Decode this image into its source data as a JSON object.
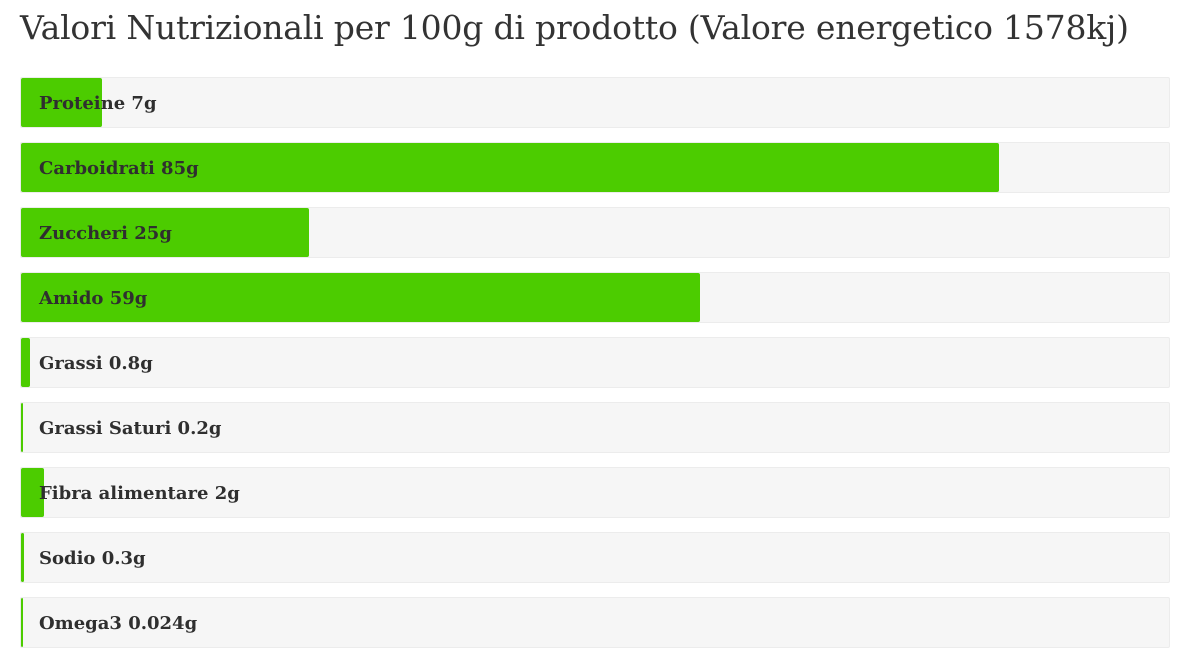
{
  "colors": {
    "bar": "#4ccc00",
    "track": "#f6f6f6",
    "text": "#333333"
  },
  "chart_data": {
    "type": "bar",
    "orientation": "horizontal",
    "title": "Valori Nutrizionali per 100g di prodotto (Valore energetico 1578kj)",
    "xlim": [
      0,
      100
    ],
    "bars": [
      {
        "label": "Proteine 7g",
        "name": "Proteine",
        "value": 7,
        "unit": "g"
      },
      {
        "label": "Carboidrati 85g",
        "name": "Carboidrati",
        "value": 85,
        "unit": "g"
      },
      {
        "label": "Zuccheri 25g",
        "name": "Zuccheri",
        "value": 25,
        "unit": "g"
      },
      {
        "label": "Amido 59g",
        "name": "Amido",
        "value": 59,
        "unit": "g"
      },
      {
        "label": "Grassi 0.8g",
        "name": "Grassi",
        "value": 0.8,
        "unit": "g"
      },
      {
        "label": "Grassi Saturi 0.2g",
        "name": "Grassi Saturi",
        "value": 0.2,
        "unit": "g"
      },
      {
        "label": "Fibra alimentare 2g",
        "name": "Fibra alimentare",
        "value": 2,
        "unit": "g"
      },
      {
        "label": "Sodio 0.3g",
        "name": "Sodio",
        "value": 0.3,
        "unit": "g"
      },
      {
        "label": "Omega3 0.024g",
        "name": "Omega3",
        "value": 0.024,
        "unit": "g"
      }
    ]
  }
}
